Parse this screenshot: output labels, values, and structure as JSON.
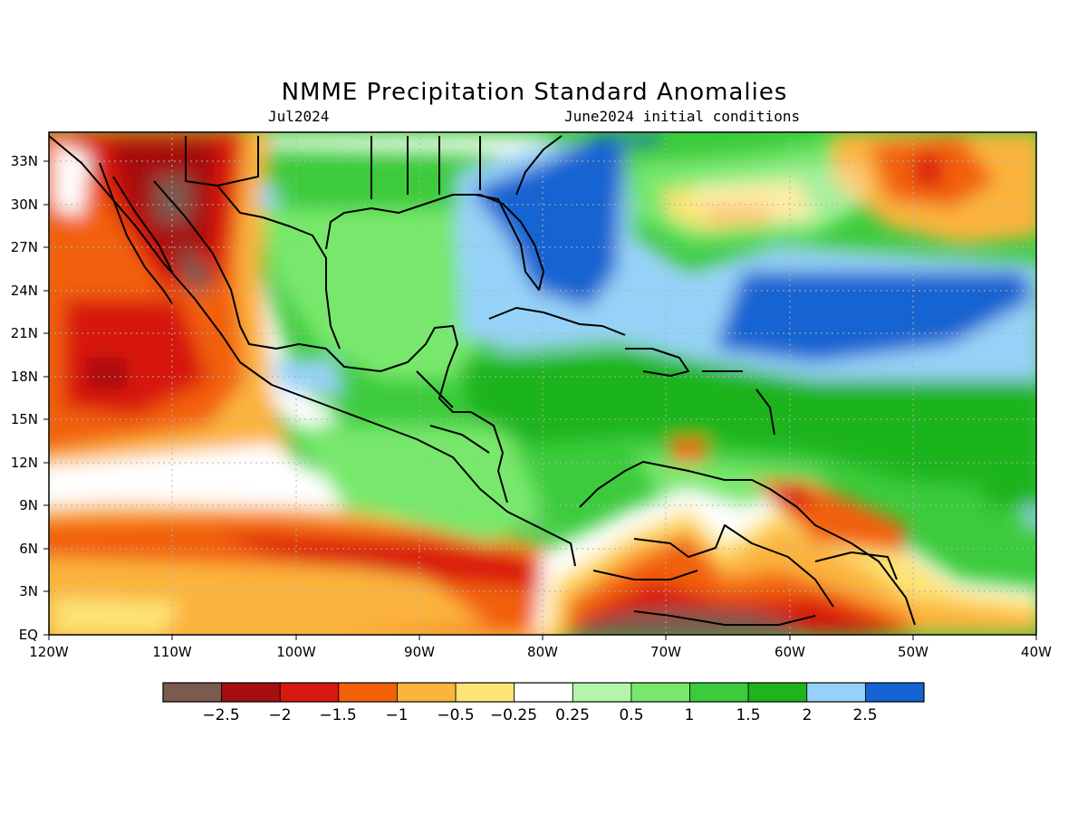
{
  "map": {
    "title": "NMME Precipitation Standard Anomalies",
    "valid_month": "Jul2024",
    "init_label": "June2024 initial conditions",
    "lat_labels": [
      "EQ",
      "3N",
      "6N",
      "9N",
      "12N",
      "15N",
      "18N",
      "21N",
      "24N",
      "27N",
      "30N",
      "33N"
    ],
    "lon_labels": [
      "120W",
      "110W",
      "100W",
      "90W",
      "80W",
      "70W",
      "60W",
      "50W",
      "40W"
    ],
    "lat_range": [
      0,
      35
    ],
    "lon_range": [
      -120,
      -40
    ],
    "grid": true
  },
  "colorbar": {
    "colors": [
      "#7b5a4f",
      "#a50f0f",
      "#d8170f",
      "#f26008",
      "#fbb43c",
      "#fde476",
      "#ffffff",
      "#b4f5ac",
      "#78e86c",
      "#3ccb3c",
      "#1eb41e",
      "#96d2f7",
      "#1463d2"
    ],
    "labels": [
      "−2.5",
      "−2",
      "−1.5",
      "−1",
      "−0.5",
      "−0.25",
      "0.25",
      "0.5",
      "1",
      "1.5",
      "2",
      "2.5"
    ]
  }
}
